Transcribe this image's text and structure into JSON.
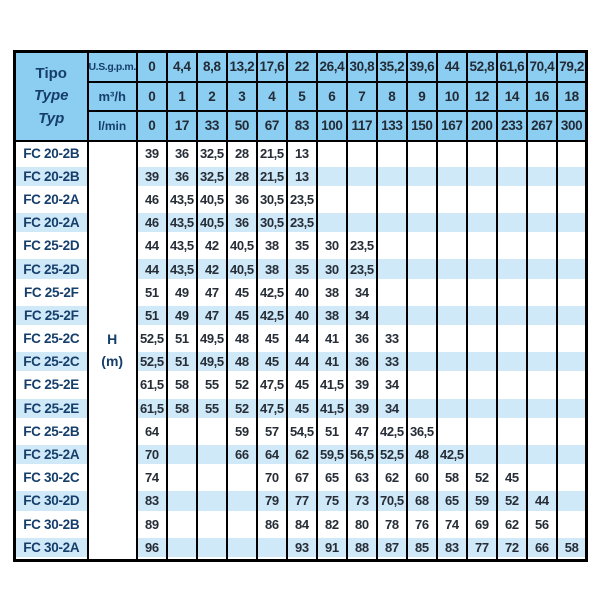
{
  "table": {
    "corner": {
      "line1": "Tipo",
      "line2": "Type",
      "line3": "Typ"
    },
    "unit_rows": [
      {
        "unit": "U.S.g.p.m.",
        "values": [
          "0",
          "4,4",
          "8,8",
          "13,2",
          "17,6",
          "22",
          "26,4",
          "30,8",
          "35,2",
          "39,6",
          "44",
          "52,8",
          "61,6",
          "70,4",
          "79,2"
        ]
      },
      {
        "unit": "m³/h",
        "values": [
          "0",
          "1",
          "2",
          "3",
          "4",
          "5",
          "6",
          "7",
          "8",
          "9",
          "10",
          "12",
          "14",
          "16",
          "18"
        ]
      },
      {
        "unit": "l/min",
        "values": [
          "0",
          "17",
          "33",
          "50",
          "67",
          "83",
          "100",
          "117",
          "133",
          "150",
          "167",
          "200",
          "233",
          "267",
          "300"
        ]
      }
    ],
    "head_label": {
      "line1": "H",
      "line2": "(m)"
    },
    "rows": [
      {
        "model": "FC 20-2B",
        "values": [
          "39",
          "36",
          "32,5",
          "28",
          "21,5",
          "13",
          "",
          "",
          "",
          "",
          "",
          "",
          "",
          "",
          ""
        ]
      },
      {
        "model": "FC 20-2B",
        "values": [
          "39",
          "36",
          "32,5",
          "28",
          "21,5",
          "13",
          "",
          "",
          "",
          "",
          "",
          "",
          "",
          "",
          ""
        ]
      },
      {
        "model": "FC 20-2A",
        "values": [
          "46",
          "43,5",
          "40,5",
          "36",
          "30,5",
          "23,5",
          "",
          "",
          "",
          "",
          "",
          "",
          "",
          "",
          ""
        ]
      },
      {
        "model": "FC 20-2A",
        "values": [
          "46",
          "43,5",
          "40,5",
          "36",
          "30,5",
          "23,5",
          "",
          "",
          "",
          "",
          "",
          "",
          "",
          "",
          ""
        ]
      },
      {
        "model": "FC 25-2D",
        "values": [
          "44",
          "43,5",
          "42",
          "40,5",
          "38",
          "35",
          "30",
          "23,5",
          "",
          "",
          "",
          "",
          "",
          "",
          ""
        ]
      },
      {
        "model": "FC 25-2D",
        "values": [
          "44",
          "43,5",
          "42",
          "40,5",
          "38",
          "35",
          "30",
          "23,5",
          "",
          "",
          "",
          "",
          "",
          "",
          ""
        ]
      },
      {
        "model": "FC 25-2F",
        "values": [
          "51",
          "49",
          "47",
          "45",
          "42,5",
          "40",
          "38",
          "34",
          "",
          "",
          "",
          "",
          "",
          "",
          ""
        ]
      },
      {
        "model": "FC 25-2F",
        "values": [
          "51",
          "49",
          "47",
          "45",
          "42,5",
          "40",
          "38",
          "34",
          "",
          "",
          "",
          "",
          "",
          "",
          ""
        ]
      },
      {
        "model": "FC 25-2C",
        "values": [
          "52,5",
          "51",
          "49,5",
          "48",
          "45",
          "44",
          "41",
          "36",
          "33",
          "",
          "",
          "",
          "",
          "",
          ""
        ]
      },
      {
        "model": "FC 25-2C",
        "values": [
          "52,5",
          "51",
          "49,5",
          "48",
          "45",
          "44",
          "41",
          "36",
          "33",
          "",
          "",
          "",
          "",
          "",
          ""
        ]
      },
      {
        "model": "FC 25-2E",
        "values": [
          "61,5",
          "58",
          "55",
          "52",
          "47,5",
          "45",
          "41,5",
          "39",
          "34",
          "",
          "",
          "",
          "",
          "",
          ""
        ]
      },
      {
        "model": "FC 25-2E",
        "values": [
          "61,5",
          "58",
          "55",
          "52",
          "47,5",
          "45",
          "41,5",
          "39",
          "34",
          "",
          "",
          "",
          "",
          "",
          ""
        ]
      },
      {
        "model": "FC 25-2B",
        "values": [
          "64",
          "",
          "",
          "59",
          "57",
          "54,5",
          "51",
          "47",
          "42,5",
          "36,5",
          "",
          "",
          "",
          "",
          ""
        ]
      },
      {
        "model": "FC 25-2A",
        "values": [
          "70",
          "",
          "",
          "66",
          "64",
          "62",
          "59,5",
          "56,5",
          "52,5",
          "48",
          "42,5",
          "",
          "",
          "",
          ""
        ]
      },
      {
        "model": "FC 30-2C",
        "values": [
          "74",
          "",
          "",
          "",
          "70",
          "67",
          "65",
          "63",
          "62",
          "60",
          "58",
          "52",
          "45",
          "",
          ""
        ]
      },
      {
        "model": "FC 30-2D",
        "values": [
          "83",
          "",
          "",
          "",
          "79",
          "77",
          "75",
          "73",
          "70,5",
          "68",
          "65",
          "59",
          "52",
          "44",
          ""
        ]
      },
      {
        "model": "FC 30-2B",
        "values": [
          "89",
          "",
          "",
          "",
          "86",
          "84",
          "82",
          "80",
          "78",
          "76",
          "74",
          "69",
          "62",
          "56",
          ""
        ]
      },
      {
        "model": "FC 30-2A",
        "values": [
          "96",
          "",
          "",
          "",
          "",
          "93",
          "91",
          "88",
          "87",
          "85",
          "83",
          "77",
          "72",
          "66",
          "58"
        ]
      }
    ],
    "colors": {
      "header_blue": "#8ccef1",
      "stripe_blue": "#cfe9f9",
      "navy_text": "#153e6b",
      "number_text": "#262d36",
      "grid": "#000000"
    }
  }
}
